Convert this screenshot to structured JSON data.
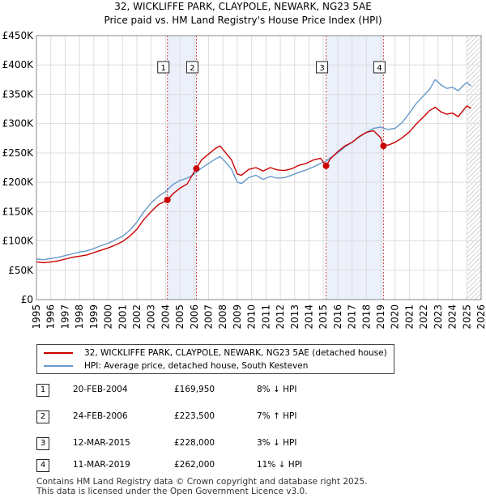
{
  "title_line1": "32, WICKLIFFE PARK, CLAYPOLE, NEWARK, NG23 5AE",
  "title_line2": "Price paid vs. HM Land Registry's House Price Index (HPI)",
  "chart_data": {
    "type": "line",
    "title": "32, WICKLIFFE PARK, CLAYPOLE, NEWARK, NG23 5AE — Price paid vs. HM Land Registry's House Price Index (HPI)",
    "xlabel": "",
    "ylabel": "",
    "xlim": [
      1995,
      2026
    ],
    "ylim": [
      0,
      450000
    ],
    "x_ticks": [
      1995,
      1996,
      1997,
      1998,
      1999,
      2000,
      2001,
      2002,
      2003,
      2004,
      2005,
      2006,
      2007,
      2008,
      2009,
      2010,
      2011,
      2012,
      2013,
      2014,
      2015,
      2016,
      2017,
      2018,
      2019,
      2020,
      2021,
      2022,
      2023,
      2024,
      2025,
      2026
    ],
    "y_ticks": [
      0,
      50000,
      100000,
      150000,
      200000,
      250000,
      300000,
      350000,
      400000,
      450000
    ],
    "y_tick_labels": [
      "£0",
      "£50K",
      "£100K",
      "£150K",
      "£200K",
      "£250K",
      "£300K",
      "£350K",
      "£400K",
      "£450K"
    ],
    "grid": true,
    "shaded_periods": [
      [
        2004.13,
        2006.15
      ],
      [
        2015.19,
        2019.19
      ]
    ],
    "future_hatch_from": 2025.0,
    "series": [
      {
        "name": "32, WICKLIFFE PARK, CLAYPOLE, NEWARK, NG23 5AE (detached house)",
        "color": "#cc0000",
        "x": [
          1995.0,
          1995.5,
          1996.0,
          1996.5,
          1997.0,
          1997.5,
          1998.0,
          1998.5,
          1999.0,
          1999.5,
          2000.0,
          2000.5,
          2001.0,
          2001.5,
          2002.0,
          2002.5,
          2003.0,
          2003.5,
          2004.0,
          2004.13,
          2004.5,
          2005.0,
          2005.5,
          2006.0,
          2006.15,
          2006.5,
          2007.0,
          2007.5,
          2007.8,
          2008.2,
          2008.6,
          2009.0,
          2009.3,
          2009.8,
          2010.3,
          2010.8,
          2011.3,
          2011.8,
          2012.3,
          2012.8,
          2013.3,
          2013.8,
          2014.3,
          2014.8,
          2015.19,
          2015.5,
          2016.0,
          2016.5,
          2017.0,
          2017.5,
          2018.0,
          2018.5,
          2019.0,
          2019.19,
          2019.6,
          2020.0,
          2020.5,
          2021.0,
          2021.5,
          2022.0,
          2022.4,
          2022.8,
          2023.2,
          2023.6,
          2024.0,
          2024.4,
          2024.8,
          2025.0,
          2025.3
        ],
        "values": [
          64000,
          63000,
          64000,
          66000,
          69000,
          72000,
          74000,
          76000,
          80000,
          84000,
          88000,
          93000,
          99000,
          108000,
          120000,
          137000,
          150000,
          162000,
          168000,
          169950,
          180000,
          190000,
          197000,
          218000,
          223500,
          238000,
          248000,
          258000,
          262000,
          250000,
          238000,
          214000,
          212000,
          222000,
          225000,
          219000,
          225000,
          221000,
          220000,
          223000,
          229000,
          232000,
          238000,
          241000,
          228000,
          240000,
          252000,
          262000,
          268000,
          278000,
          285000,
          288000,
          276000,
          262000,
          264000,
          268000,
          276000,
          286000,
          300000,
          312000,
          322000,
          328000,
          320000,
          316000,
          318000,
          312000,
          324000,
          330000,
          326000
        ]
      },
      {
        "name": "HPI: Average price, detached house, South Kesteven",
        "color": "#6699cc",
        "x": [
          1995.0,
          1995.5,
          1996.0,
          1996.5,
          1997.0,
          1997.5,
          1998.0,
          1998.5,
          1999.0,
          1999.5,
          2000.0,
          2000.5,
          2001.0,
          2001.5,
          2002.0,
          2002.5,
          2003.0,
          2003.5,
          2004.0,
          2004.5,
          2005.0,
          2005.5,
          2006.0,
          2006.5,
          2007.0,
          2007.5,
          2007.8,
          2008.2,
          2008.6,
          2009.0,
          2009.3,
          2009.8,
          2010.3,
          2010.8,
          2011.3,
          2011.8,
          2012.3,
          2012.8,
          2013.3,
          2013.8,
          2014.3,
          2014.8,
          2015.2,
          2015.5,
          2016.0,
          2016.5,
          2017.0,
          2017.5,
          2018.0,
          2018.5,
          2019.0,
          2019.5,
          2020.0,
          2020.5,
          2021.0,
          2021.5,
          2022.0,
          2022.4,
          2022.8,
          2023.2,
          2023.6,
          2024.0,
          2024.4,
          2024.8,
          2025.0,
          2025.3
        ],
        "values": [
          69000,
          68000,
          70000,
          72000,
          75000,
          78000,
          81000,
          83000,
          87000,
          92000,
          96000,
          102000,
          108000,
          118000,
          132000,
          150000,
          165000,
          176000,
          184000,
          196000,
          203000,
          207000,
          214000,
          224000,
          232000,
          240000,
          244000,
          234000,
          222000,
          200000,
          198000,
          208000,
          212000,
          205000,
          210000,
          207000,
          208000,
          212000,
          217000,
          221000,
          226000,
          232000,
          236000,
          242000,
          250000,
          260000,
          268000,
          277000,
          285000,
          292000,
          294000,
          290000,
          292000,
          302000,
          318000,
          335000,
          348000,
          358000,
          375000,
          366000,
          360000,
          362000,
          356000,
          366000,
          370000,
          364000
        ]
      }
    ],
    "sale_markers": [
      {
        "label": "1",
        "x": 2004.13,
        "value": 169950
      },
      {
        "label": "2",
        "x": 2006.15,
        "value": 223500
      },
      {
        "label": "3",
        "x": 2015.19,
        "value": 228000
      },
      {
        "label": "4",
        "x": 2019.19,
        "value": 262000
      }
    ]
  },
  "legend": {
    "property_label": "32, WICKLIFFE PARK, CLAYPOLE, NEWARK, NG23 5AE (detached house)",
    "hpi_label": "HPI: Average price, detached house, South Kesteven",
    "property_color": "#cc0000",
    "hpi_color": "#6699cc"
  },
  "transactions": [
    {
      "num": "1",
      "date": "20-FEB-2004",
      "price": "£169,950",
      "hpi": "8% ↓ HPI"
    },
    {
      "num": "2",
      "date": "24-FEB-2006",
      "price": "£223,500",
      "hpi": "7% ↑ HPI"
    },
    {
      "num": "3",
      "date": "12-MAR-2015",
      "price": "£228,000",
      "hpi": "3% ↓ HPI"
    },
    {
      "num": "4",
      "date": "11-MAR-2019",
      "price": "£262,000",
      "hpi": "11% ↓ HPI"
    }
  ],
  "footer": {
    "line1": "Contains HM Land Registry data © Crown copyright and database right 2025.",
    "line2": "This data is licensed under the Open Government Licence v3.0."
  }
}
